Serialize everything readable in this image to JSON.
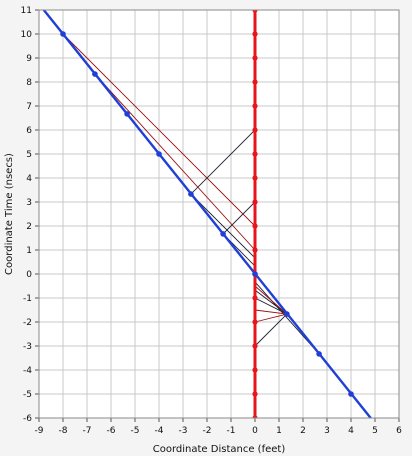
{
  "chart_data": {
    "type": "line",
    "xlabel": "Coordinate Distance (feet)",
    "ylabel": "Coordinate Time (nsecs)",
    "xlim": [
      -9,
      6
    ],
    "ylim": [
      -6,
      11
    ],
    "x_ticks": [
      "-9",
      "-8",
      "-7",
      "-6",
      "-5",
      "-4",
      "-3",
      "-2",
      "-1",
      "0",
      "1",
      "2",
      "3",
      "4",
      "5",
      "6"
    ],
    "y_ticks": [
      "11",
      "10",
      "9",
      "8",
      "7",
      "6",
      "5",
      "4",
      "3",
      "2",
      "1",
      "0",
      "-1",
      "-2",
      "-3",
      "-4",
      "-5",
      "-6"
    ],
    "grid": true,
    "colors": {
      "red_series": "#e8141b",
      "blue_series": "#1f3fd6",
      "dark_red_lines": "#9a1010",
      "black_lines": "#202030",
      "grid": "#c8c8c8",
      "plot_bg": "#ffffff"
    },
    "series": [
      {
        "role": "red-worldline",
        "x": [
          0,
          0,
          0,
          0,
          0,
          0,
          0,
          0,
          0,
          0,
          0,
          0,
          0,
          0,
          0,
          0,
          0,
          0
        ],
        "y": [
          11,
          10,
          9,
          8,
          7,
          6,
          5,
          4,
          3,
          2,
          1,
          0,
          -1,
          -2,
          -3,
          -4,
          -5,
          -6
        ]
      },
      {
        "role": "blue-worldline",
        "x": [
          -8,
          -6.67,
          -5.33,
          -4,
          -2.67,
          -1.33,
          0,
          1.33,
          2.67,
          4
        ],
        "y": [
          10,
          8.33,
          6.67,
          5,
          3.33,
          1.67,
          0,
          -1.67,
          -3.33,
          -5
        ],
        "extent_x": [
          -9.2,
          4.9
        ],
        "extent_y": [
          11.5,
          -6.1
        ]
      }
    ],
    "light_signals": [
      {
        "color": "dark_red",
        "x": [
          -8,
          0
        ],
        "y": [
          10,
          2
        ]
      },
      {
        "color": "dark_red",
        "x": [
          -6.67,
          0
        ],
        "y": [
          8.33,
          1
        ]
      },
      {
        "color": "black",
        "x": [
          0,
          -2.67,
          0
        ],
        "y": [
          6,
          3.33,
          0.67
        ]
      },
      {
        "color": "black",
        "x": [
          0,
          -1.33,
          0
        ],
        "y": [
          3,
          1.67,
          0.33
        ]
      },
      {
        "color": "black",
        "x": [
          0,
          2.67
        ],
        "y": [
          -0.33,
          -3.33
        ]
      },
      {
        "color": "black",
        "x": [
          0,
          1.33,
          0
        ],
        "y": [
          -0.67,
          -1.67,
          -3
        ]
      },
      {
        "color": "black",
        "x": [
          0,
          1.33
        ],
        "y": [
          -1,
          -1.67
        ]
      },
      {
        "color": "dark_red",
        "x": [
          0,
          1.33,
          0
        ],
        "y": [
          -1.5,
          -1.67,
          -2
        ]
      },
      {
        "color": "dark_red",
        "x": [
          0,
          1.33
        ],
        "y": [
          -0.5,
          -1.67
        ]
      }
    ]
  }
}
